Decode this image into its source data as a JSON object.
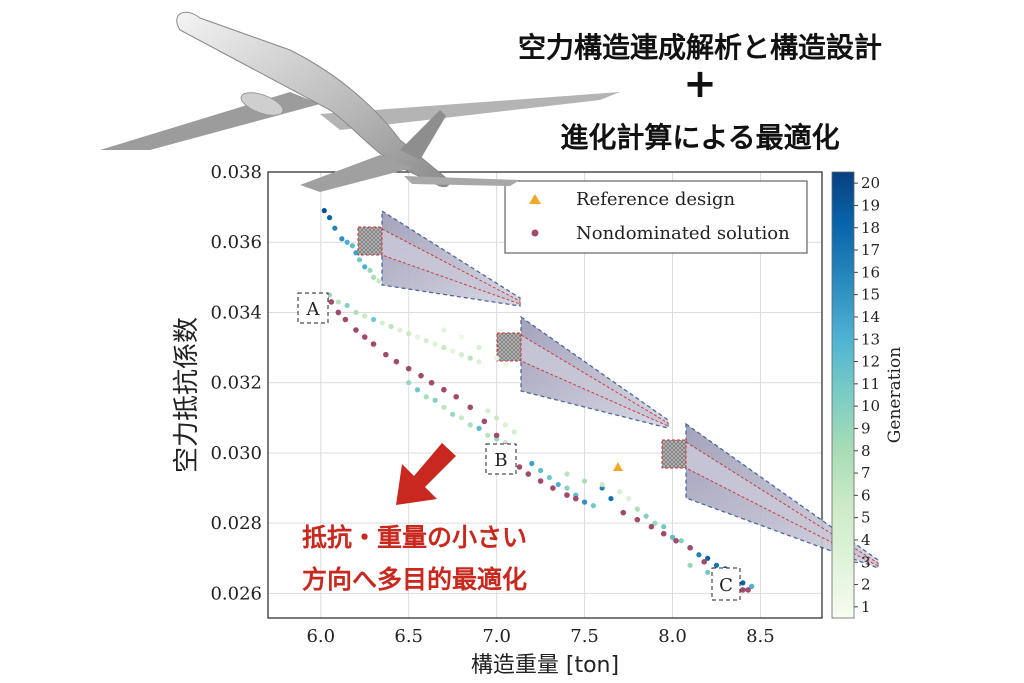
{
  "header": {
    "line1": "空力構造連成解析と構造設計",
    "plus": "+",
    "line2": "進化計算による最適化"
  },
  "annotation": {
    "line1": "抵抗・重量の小さい",
    "line2": "方向へ多目的最適化",
    "arrow_color": "#c8281e"
  },
  "points": {
    "A": "A",
    "B": "B",
    "C": "C"
  },
  "chart_data": {
    "type": "scatter",
    "xlabel": "構造重量 [ton]",
    "ylabel": "空力抵抗係数",
    "xlim": [
      5.7,
      8.85
    ],
    "ylim": [
      0.0253,
      0.038
    ],
    "xticks": [
      6.0,
      6.5,
      7.0,
      7.5,
      8.0,
      8.5
    ],
    "xtick_labels": [
      "6.0",
      "6.5",
      "7.0",
      "7.5",
      "8.0",
      "8.5"
    ],
    "yticks": [
      0.026,
      0.028,
      0.03,
      0.032,
      0.034,
      0.036,
      0.038
    ],
    "ytick_labels": [
      "0.026",
      "0.028",
      "0.030",
      "0.032",
      "0.034",
      "0.036",
      "0.038"
    ],
    "grid": true,
    "legend_position": "top-right",
    "legend": [
      {
        "label": "Reference design",
        "marker": "triangle",
        "color": "#f0a92c"
      },
      {
        "label": "Nondominated solution",
        "marker": "circle",
        "color": "#a04a6c"
      }
    ],
    "colorbar": {
      "label": "Generation",
      "min": 1,
      "max": 20,
      "ticks": [
        "1",
        "2",
        "3",
        "4",
        "5",
        "6",
        "7",
        "8",
        "9",
        "10",
        "11",
        "12",
        "13",
        "14",
        "15",
        "16",
        "17",
        "18",
        "19",
        "20"
      ],
      "colors": [
        "#f7fcf0",
        "#e0f3db",
        "#ccebc5",
        "#a8ddb5",
        "#7bccc4",
        "#4eb3d3",
        "#2b8cbe",
        "#0868ac",
        "#084081"
      ]
    },
    "reference_design": {
      "x": 7.69,
      "y": 0.0296
    },
    "labeled_points": [
      {
        "label": "A",
        "x": 6.0,
        "y": 0.0343
      },
      {
        "label": "B",
        "x": 7.07,
        "y": 0.0298
      },
      {
        "label": "C",
        "x": 8.27,
        "y": 0.0261
      }
    ],
    "population": [
      [
        6.02,
        0.0369,
        19
      ],
      [
        6.05,
        0.0367,
        18
      ],
      [
        6.08,
        0.0364,
        16
      ],
      [
        6.12,
        0.0361,
        15
      ],
      [
        6.15,
        0.036,
        13
      ],
      [
        6.18,
        0.0359,
        12
      ],
      [
        6.2,
        0.0357,
        14
      ],
      [
        6.22,
        0.0355,
        11
      ],
      [
        6.25,
        0.0353,
        13
      ],
      [
        6.28,
        0.0352,
        9
      ],
      [
        6.3,
        0.035,
        8
      ],
      [
        6.33,
        0.0349,
        6
      ],
      [
        6.05,
        0.0345,
        9
      ],
      [
        6.1,
        0.0343,
        7
      ],
      [
        6.15,
        0.0342,
        10
      ],
      [
        6.2,
        0.034,
        8
      ],
      [
        6.25,
        0.0339,
        6
      ],
      [
        6.3,
        0.0338,
        11
      ],
      [
        6.35,
        0.0337,
        5
      ],
      [
        6.4,
        0.0336,
        7
      ],
      [
        6.45,
        0.0335,
        4
      ],
      [
        6.5,
        0.0334,
        6
      ],
      [
        6.55,
        0.0333,
        3
      ],
      [
        6.6,
        0.0332,
        5
      ],
      [
        6.65,
        0.0331,
        4
      ],
      [
        6.7,
        0.033,
        6
      ],
      [
        6.75,
        0.0329,
        3
      ],
      [
        6.8,
        0.0328,
        5
      ],
      [
        6.85,
        0.0327,
        7
      ],
      [
        6.9,
        0.0326,
        4
      ],
      [
        6.7,
        0.0335,
        3
      ],
      [
        6.8,
        0.0333,
        2
      ],
      [
        6.9,
        0.033,
        4
      ],
      [
        7.0,
        0.0327,
        3
      ],
      [
        7.05,
        0.0325,
        2
      ],
      [
        6.5,
        0.032,
        9
      ],
      [
        6.55,
        0.0318,
        11
      ],
      [
        6.6,
        0.0316,
        8
      ],
      [
        6.65,
        0.0315,
        10
      ],
      [
        6.7,
        0.0313,
        7
      ],
      [
        6.75,
        0.0311,
        9
      ],
      [
        6.8,
        0.031,
        6
      ],
      [
        6.85,
        0.0308,
        8
      ],
      [
        6.9,
        0.0307,
        12
      ],
      [
        6.95,
        0.0305,
        7
      ],
      [
        7.0,
        0.0304,
        9
      ],
      [
        7.05,
        0.0303,
        6
      ],
      [
        6.95,
        0.0312,
        5
      ],
      [
        7.0,
        0.031,
        6
      ],
      [
        7.05,
        0.0308,
        4
      ],
      [
        7.1,
        0.0306,
        5
      ],
      [
        7.2,
        0.0297,
        14
      ],
      [
        7.25,
        0.0295,
        12
      ],
      [
        7.3,
        0.0293,
        11
      ],
      [
        7.35,
        0.0291,
        13
      ],
      [
        7.4,
        0.029,
        10
      ],
      [
        7.45,
        0.0288,
        12
      ],
      [
        7.5,
        0.0286,
        15
      ],
      [
        7.55,
        0.0285,
        11
      ],
      [
        7.6,
        0.029,
        16
      ],
      [
        7.65,
        0.0287,
        17
      ],
      [
        7.4,
        0.0294,
        7
      ],
      [
        7.5,
        0.0292,
        8
      ],
      [
        7.6,
        0.0291,
        6
      ],
      [
        7.7,
        0.0289,
        5
      ],
      [
        7.75,
        0.0287,
        4
      ],
      [
        7.8,
        0.0284,
        8
      ],
      [
        7.85,
        0.0282,
        10
      ],
      [
        7.9,
        0.028,
        9
      ],
      [
        7.95,
        0.0279,
        11
      ],
      [
        8.0,
        0.0276,
        12
      ],
      [
        8.05,
        0.0275,
        10
      ],
      [
        8.1,
        0.0273,
        14
      ],
      [
        8.15,
        0.0271,
        16
      ],
      [
        8.2,
        0.027,
        18
      ],
      [
        8.25,
        0.0268,
        17
      ],
      [
        8.3,
        0.0267,
        19
      ],
      [
        8.35,
        0.0265,
        15
      ],
      [
        8.4,
        0.0263,
        18
      ],
      [
        8.45,
        0.0262,
        13
      ],
      [
        8.1,
        0.0268,
        9
      ],
      [
        8.2,
        0.0266,
        11
      ],
      [
        8.3,
        0.0264,
        8
      ],
      [
        8.35,
        0.0262,
        10
      ]
    ],
    "nondominated": [
      [
        6.03,
        0.0344
      ],
      [
        6.06,
        0.0343
      ],
      [
        6.1,
        0.034
      ],
      [
        6.14,
        0.0338
      ],
      [
        6.2,
        0.0335
      ],
      [
        6.25,
        0.0333
      ],
      [
        6.3,
        0.0331
      ],
      [
        6.37,
        0.0328
      ],
      [
        6.43,
        0.0326
      ],
      [
        6.5,
        0.0324
      ],
      [
        6.57,
        0.0322
      ],
      [
        6.63,
        0.032
      ],
      [
        6.7,
        0.0318
      ],
      [
        6.77,
        0.0316
      ],
      [
        6.85,
        0.0313
      ],
      [
        6.93,
        0.0309
      ],
      [
        7.0,
        0.0305
      ],
      [
        7.05,
        0.0302
      ],
      [
        7.08,
        0.0299
      ],
      [
        7.13,
        0.0296
      ],
      [
        7.18,
        0.0294
      ],
      [
        7.25,
        0.0292
      ],
      [
        7.32,
        0.029
      ],
      [
        7.4,
        0.0288
      ],
      [
        7.45,
        0.0287
      ],
      [
        7.72,
        0.0283
      ],
      [
        7.8,
        0.0281
      ],
      [
        7.88,
        0.0279
      ],
      [
        7.95,
        0.0277
      ],
      [
        8.02,
        0.0275
      ],
      [
        8.1,
        0.0273
      ],
      [
        8.18,
        0.0269
      ],
      [
        8.25,
        0.0266
      ],
      [
        8.3,
        0.0264
      ],
      [
        8.35,
        0.0263
      ],
      [
        8.4,
        0.0261
      ],
      [
        8.43,
        0.0261
      ]
    ]
  }
}
